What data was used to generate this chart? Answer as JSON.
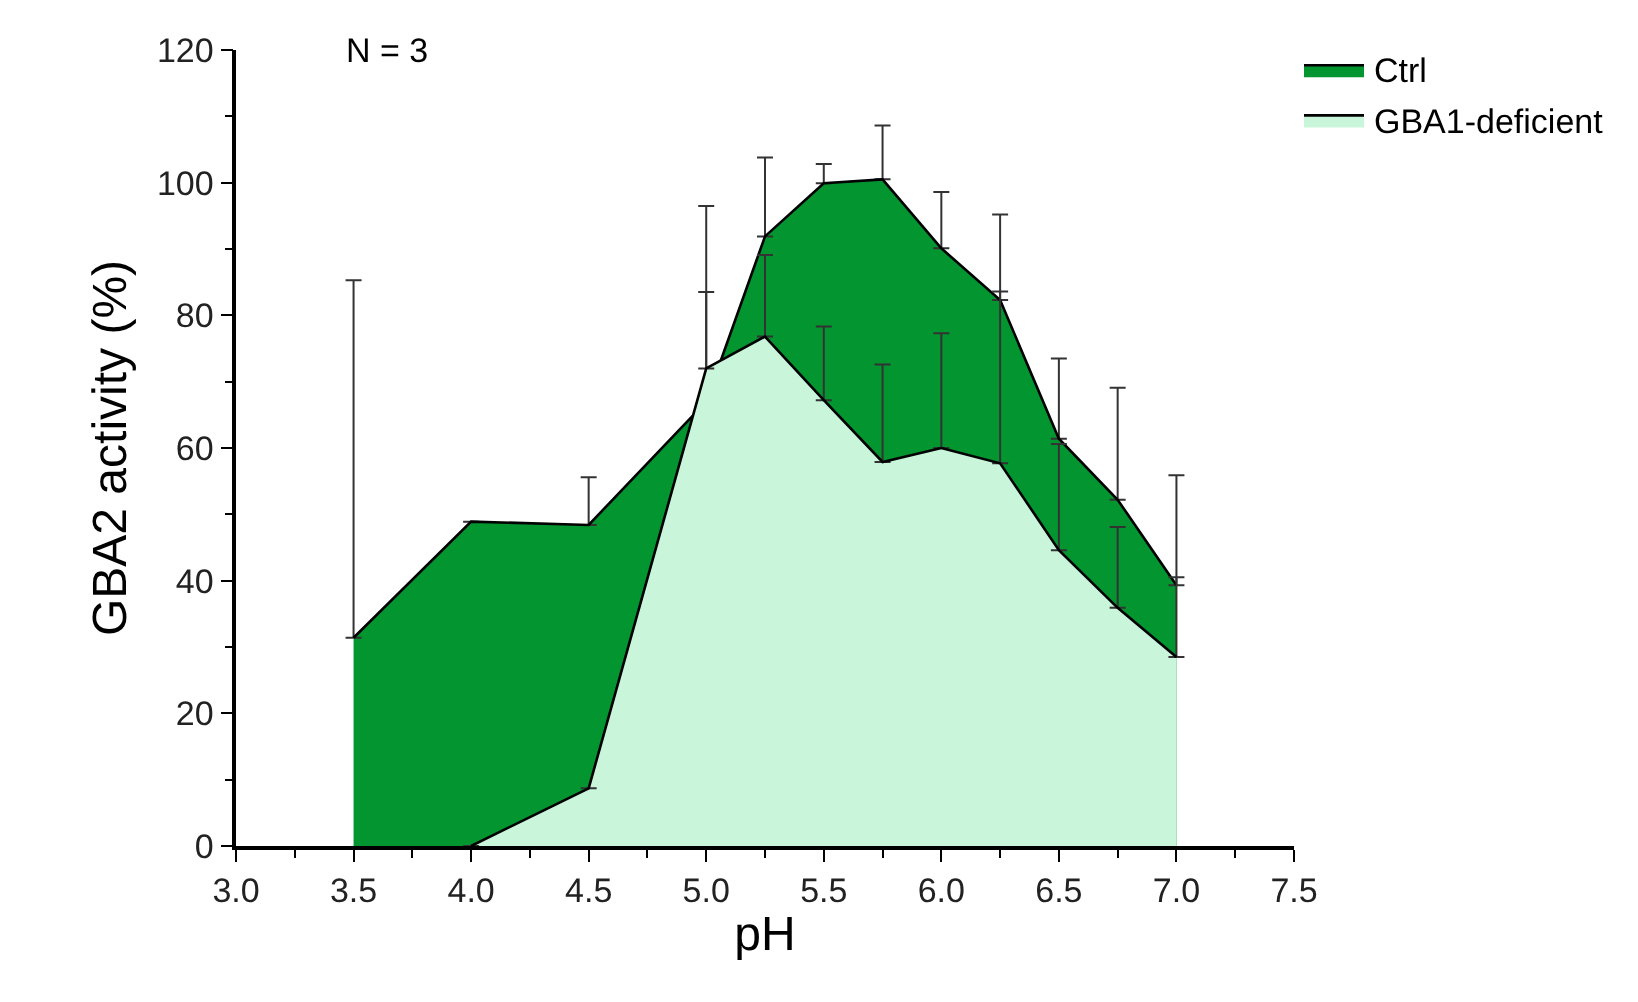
{
  "chart_data": {
    "type": "area",
    "xlabel": "pH",
    "ylabel": "GBA2 activity (%)",
    "annotations": [
      "N = 3"
    ],
    "series": [
      {
        "name": "Ctrl",
        "color": "#03952f",
        "x": [
          3.5,
          4.0,
          4.5,
          5.0,
          5.25,
          5.5,
          5.75,
          6.0,
          6.25,
          6.5,
          6.75,
          7.0
        ],
        "values": [
          31.4,
          48.9,
          48.4,
          67,
          91.9,
          99.9,
          100.5,
          90.1,
          82.3,
          61.4,
          52.2,
          39.3
        ],
        "errors": [
          [
            31.4,
            85.3
          ],
          null,
          [
            48.4,
            55.6
          ],
          [
            67,
            96.5
          ],
          [
            91.9,
            103.8
          ],
          [
            99.9,
            102.8
          ],
          [
            100.5,
            108.6
          ],
          [
            90.1,
            98.6
          ],
          [
            82.3,
            95.2
          ],
          [
            61.4,
            73.5
          ],
          [
            52.2,
            69.1
          ],
          [
            39.3,
            55.9
          ]
        ]
      },
      {
        "name": "GBA1-deficient",
        "color": "#c9f5da",
        "x": [
          4.0,
          4.5,
          5.0,
          5.25,
          5.5,
          5.75,
          6.0,
          6.25,
          6.5,
          6.75,
          7.0
        ],
        "values": [
          0,
          8.7,
          72,
          76.8,
          67.2,
          57.9,
          60,
          57.7,
          44.6,
          35.9,
          28.5
        ],
        "errors": [
          null,
          null,
          [
            72,
            83.5
          ],
          [
            76.8,
            89.1
          ],
          [
            67.2,
            78.3
          ],
          [
            57.9,
            72.6
          ],
          [
            60,
            77.3
          ],
          [
            57.7,
            83.6
          ],
          [
            44.6,
            60.6
          ],
          [
            35.9,
            48.1
          ],
          [
            28.5,
            40.5
          ]
        ]
      }
    ],
    "xlim": [
      3.0,
      7.5
    ],
    "xticks": [
      {
        "value": 3.0,
        "label": "3.0"
      },
      {
        "value": 3.5,
        "label": "3.5"
      },
      {
        "value": 4.0,
        "label": "4.0"
      },
      {
        "value": 4.5,
        "label": "4.5"
      },
      {
        "value": 5.0,
        "label": "5.0"
      },
      {
        "value": 5.5,
        "label": "5.5"
      },
      {
        "value": 6.0,
        "label": "6.0"
      },
      {
        "value": 6.5,
        "label": "6.5"
      },
      {
        "value": 7.0,
        "label": "7.0"
      },
      {
        "value": 7.5,
        "label": "7.5"
      }
    ],
    "ylim": [
      0,
      120
    ],
    "yticks": [
      0,
      20,
      40,
      60,
      80,
      100,
      120
    ],
    "legend": "top right"
  }
}
